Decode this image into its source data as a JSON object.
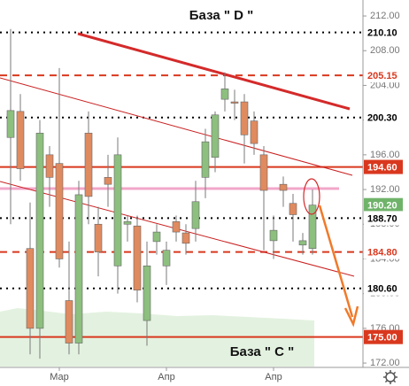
{
  "chart_data": {
    "type": "candlestick",
    "annotations": [
      "База \" D \"",
      "База \" C \""
    ],
    "categories": [
      null,
      null,
      null,
      null,
      null,
      "Мар",
      null,
      null,
      null,
      null,
      null,
      null,
      null,
      null,
      null,
      null,
      "Апр",
      null,
      null,
      null,
      null,
      null,
      null,
      null,
      null,
      null,
      null,
      "Апр",
      null,
      null,
      null,
      null
    ],
    "series": [
      {
        "up_color": "#8dbf7f",
        "down_color": "#e08a5f",
        "open": [
          198.0,
          201.0,
          185.2,
          176.0,
          196.0,
          195.0,
          179.2,
          174.3,
          198.5,
          188.0,
          193.4,
          183.2,
          188.0,
          187.8,
          176.9,
          186.0,
          183.2,
          188.3,
          187.0,
          187.5,
          193.4,
          195.7,
          202.4,
          202.1,
          202.1,
          199.9,
          196.0,
          186.1,
          192.6,
          190.4,
          185.6,
          185.2
        ],
        "high": [
          210.5,
          203.0,
          190.5,
          200.0,
          197.0,
          206.0,
          186.0,
          193.0,
          201.0,
          190.0,
          196.0,
          198.0,
          189.0,
          189.0,
          186.0,
          188.0,
          186.0,
          189.0,
          188.0,
          193.0,
          199.0,
          201.0,
          205.5,
          203.5,
          203.0,
          201.0,
          197.0,
          189.0,
          193.5,
          191.5,
          187.0,
          192.0
        ],
        "low": [
          188.0,
          193.0,
          173.0,
          172.5,
          190.0,
          183.0,
          173.0,
          173.0,
          188.0,
          182.0,
          190.0,
          180.0,
          186.0,
          179.0,
          174.0,
          184.5,
          181.0,
          186.0,
          184.5,
          186.0,
          191.0,
          194.0,
          201.0,
          200.0,
          195.0,
          196.0,
          185.0,
          184.0,
          190.0,
          186.0,
          184.5,
          184.5
        ],
        "close": [
          201.1,
          194.4,
          176.0,
          198.5,
          193.4,
          184.0,
          174.3,
          191.4,
          191.2,
          184.8,
          192.6,
          196.0,
          188.3,
          180.4,
          183.2,
          187.1,
          185.0,
          187.1,
          185.8,
          190.6,
          197.5,
          200.6,
          203.6,
          202.0,
          198.3,
          197.3,
          191.9,
          187.3,
          191.9,
          189.1,
          186.1,
          190.2
        ]
      }
    ],
    "levels": [
      {
        "value": 210.1,
        "label": "210.10",
        "color": "#000000",
        "style": "dotted",
        "tag": "plain"
      },
      {
        "value": 205.15,
        "label": "205.15",
        "color": "#d9381e",
        "style": "dashed",
        "tag": "plain"
      },
      {
        "value": 200.3,
        "label": "200.30",
        "color": "#000000",
        "style": "dotted",
        "tag": "plain"
      },
      {
        "value": 194.6,
        "label": "194.60",
        "color": "#d9381e",
        "style": "solid",
        "tag": "filled"
      },
      {
        "value": 190.2,
        "label": "190.20",
        "color": "#6fb36a",
        "style": "none",
        "tag": "filled"
      },
      {
        "value": 188.7,
        "label": "188.70",
        "color": "#000000",
        "style": "dotted",
        "tag": "plain"
      },
      {
        "value": 184.8,
        "label": "184.80",
        "color": "#d9381e",
        "style": "dashed",
        "tag": "plain"
      },
      {
        "value": 180.6,
        "label": "180.60",
        "color": "#000000",
        "style": "dotted",
        "tag": "plain"
      },
      {
        "value": 175.0,
        "label": "175.00",
        "color": "#d9381e",
        "style": "solid",
        "tag": "filled"
      }
    ],
    "ylim": [
      171.6,
      213.84
    ],
    "yticks": [
      {
        "value": 212,
        "label": "212.00"
      },
      {
        "value": 208,
        "label": "208.00"
      },
      {
        "value": 204,
        "label": "204.00"
      },
      {
        "value": 200,
        "label": "200.00"
      },
      {
        "value": 196,
        "label": "196.00"
      },
      {
        "value": 192,
        "label": "192.00"
      },
      {
        "value": 188,
        "label": "188.00"
      },
      {
        "value": 184,
        "label": "184.00"
      },
      {
        "value": 180,
        "label": "180.00"
      },
      {
        "value": 176,
        "label": "176.00"
      },
      {
        "value": 172,
        "label": "172.00"
      }
    ]
  }
}
